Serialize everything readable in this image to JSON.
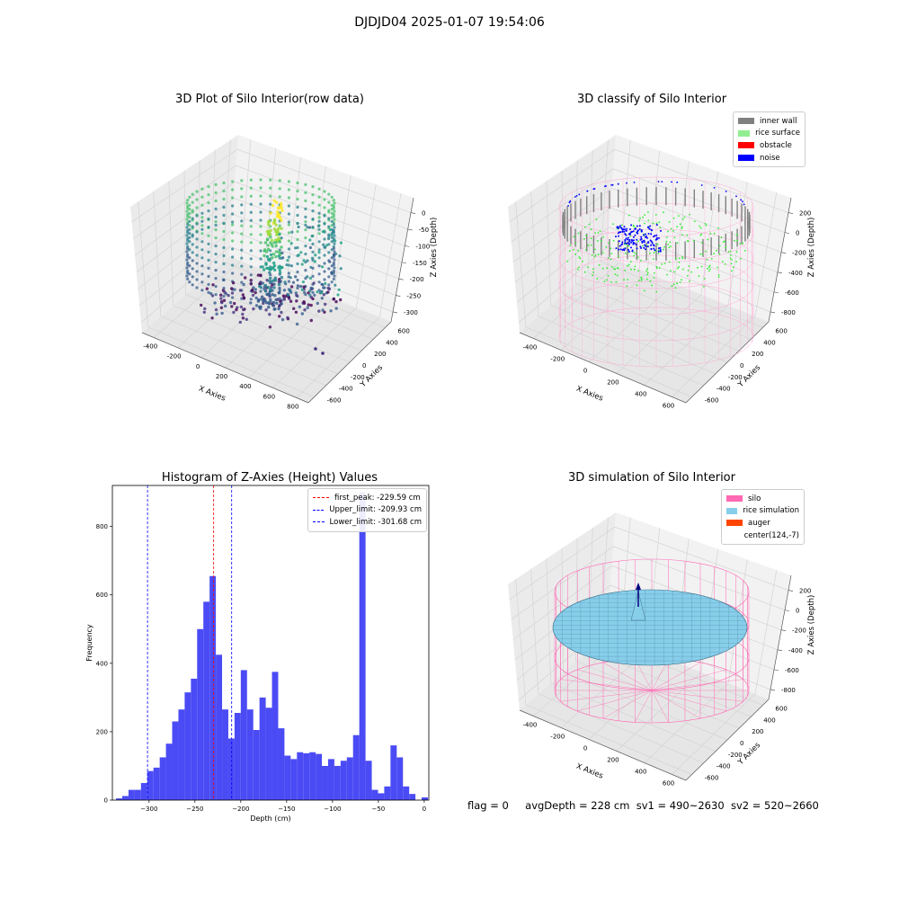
{
  "figure_title": "DJDJD04 2025-01-07 19:54:06",
  "footer": {
    "flag": "flag = 0",
    "avg_depth": "avgDepth = 228 cm",
    "sv1": "sv1 = 490~2630",
    "sv2": "sv2 = 520~2660"
  },
  "colors": {
    "inner_wall": "#808080",
    "rice_surface": "#90ee90",
    "obstacle": "#ff0000",
    "noise": "#0000ff",
    "silo": "#ff69b4",
    "rice_simulation": "#87ceeb",
    "auger": "#ff4500",
    "hist_bar": "#4b4bf5",
    "first_peak": "#ff0000",
    "limit": "#0000ff"
  },
  "chart_data": [
    {
      "type": "scatter",
      "subtype": "3d",
      "title": "3D Plot of Silo Interior(row data)",
      "xlabel": "X Axies",
      "ylabel": "Y Axies",
      "zlabel": "Z Axies (Depth)",
      "x_ticks": [
        "-400",
        "-200",
        "0",
        "200",
        "400",
        "600",
        "800"
      ],
      "y_ticks": [
        "-600",
        "-400",
        "-200",
        "0",
        "200",
        "400",
        "600"
      ],
      "z_ticks": [
        "0",
        "-50",
        "-100",
        "-150",
        "-200",
        "-250",
        "-300"
      ],
      "colormap": "viridis"
    },
    {
      "type": "scatter",
      "subtype": "3d",
      "title": "3D classify of Silo Interior",
      "xlabel": "X Axies",
      "ylabel": "Y Axies",
      "zlabel": "Z Axies (Depth)",
      "x_ticks": [
        "-400",
        "-200",
        "0",
        "200",
        "400",
        "600"
      ],
      "y_ticks": [
        "-600",
        "-400",
        "-200",
        "0",
        "200",
        "400",
        "600"
      ],
      "z_ticks": [
        "200",
        "0",
        "-200",
        "-400",
        "-600",
        "-800"
      ],
      "legend": [
        "inner wall",
        "rice surface",
        "obstacle",
        "noise"
      ],
      "legend_position": "top-right"
    },
    {
      "type": "bar",
      "subtype": "histogram",
      "title": "Histogram of Z-Axies (Height) Values",
      "xlabel": "Depth (cm)",
      "ylabel": "Frequency",
      "xlim": [
        -340,
        5
      ],
      "ylim": [
        0,
        920
      ],
      "x_ticks": [
        -300,
        -250,
        -200,
        -150,
        -100,
        -50,
        0
      ],
      "y_ticks": [
        0,
        200,
        400,
        600,
        800
      ],
      "bin_width": 6.8,
      "bin_starts": [
        -336,
        -329.2,
        -322.4,
        -315.6,
        -308.8,
        -302,
        -295.2,
        -288.4,
        -281.6,
        -274.8,
        -268,
        -261.2,
        -254.4,
        -247.6,
        -240.8,
        -234,
        -227.2,
        -220.4,
        -213.6,
        -206.8,
        -200,
        -193.2,
        -186.4,
        -179.6,
        -172.8,
        -166,
        -159.2,
        -152.4,
        -145.6,
        -138.8,
        -132,
        -125.2,
        -118.4,
        -111.6,
        -104.8,
        -98,
        -91.2,
        -84.4,
        -77.6,
        -70.8,
        -64,
        -57.2,
        -50.4,
        -43.6,
        -36.8,
        -30,
        -23.2,
        -16.4,
        -9.6,
        -2.8
      ],
      "values": [
        5,
        12,
        30,
        30,
        50,
        85,
        95,
        125,
        165,
        230,
        265,
        315,
        355,
        500,
        580,
        655,
        425,
        265,
        180,
        255,
        380,
        265,
        205,
        300,
        270,
        375,
        210,
        130,
        120,
        140,
        137,
        140,
        135,
        100,
        120,
        100,
        115,
        125,
        190,
        900,
        115,
        30,
        20,
        40,
        160,
        125,
        40,
        18,
        0,
        8
      ],
      "vlines": [
        {
          "label": "first_peak: -229.59 cm",
          "x": -229.59,
          "color": "#ff0000"
        },
        {
          "label": "Upper_limit: -209.93 cm",
          "x": -209.93,
          "color": "#0000ff"
        },
        {
          "label": "Lower_limit: -301.68 cm",
          "x": -301.68,
          "color": "#0000ff"
        }
      ],
      "legend_position": "top-right"
    },
    {
      "type": "scatter",
      "subtype": "3d-surface",
      "title": "3D simulation of Silo Interior",
      "xlabel": "X Axies",
      "ylabel": "Y Axies",
      "zlabel": "Z Axies (Depth)",
      "x_ticks": [
        "-400",
        "-200",
        "0",
        "200",
        "400",
        "600"
      ],
      "y_ticks": [
        "-600",
        "-400",
        "-200",
        "0",
        "200",
        "400",
        "600"
      ],
      "z_ticks": [
        "200",
        "0",
        "-200",
        "-400",
        "-600",
        "-800"
      ],
      "legend": [
        "silo",
        "rice simulation",
        "auger",
        "center(124,-7)"
      ],
      "legend_position": "top-right"
    }
  ]
}
